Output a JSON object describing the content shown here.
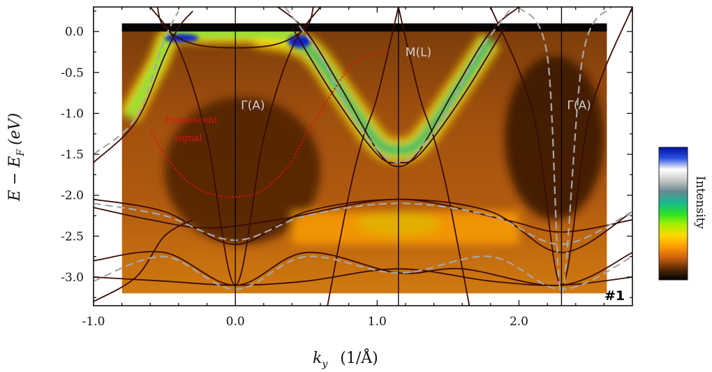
{
  "chart_data": {
    "type": "heatmap",
    "title": "",
    "panel_label": "#1",
    "xlabel": {
      "main": "k",
      "sub": "y",
      "units": "(1/Å)"
    },
    "ylabel": {
      "main": "E − E",
      "sub": "F",
      "units": "(eV)"
    },
    "xlim": [
      -1.0,
      2.8
    ],
    "ylim": [
      -3.35,
      0.3
    ],
    "data_xrange": [
      -0.8,
      2.62
    ],
    "data_yrange": [
      -3.2,
      0.1
    ],
    "xticks": [
      {
        "value": -1.0,
        "label": "-1.0"
      },
      {
        "value": 0.0,
        "label": "0.0"
      },
      {
        "value": 1.0,
        "label": "1.0"
      },
      {
        "value": 2.0,
        "label": "2.0"
      }
    ],
    "yticks": [
      {
        "value": 0.0,
        "label": "0.0"
      },
      {
        "value": -0.5,
        "label": "-0.5"
      },
      {
        "value": -1.0,
        "label": "-1.0"
      },
      {
        "value": -1.5,
        "label": "-1.5"
      },
      {
        "value": -2.0,
        "label": "-2.0"
      },
      {
        "value": -2.5,
        "label": "-2.5"
      },
      {
        "value": -3.0,
        "label": "-3.0"
      }
    ],
    "high_symmetry_points": [
      {
        "k": 0.0,
        "label": "Γ(A)"
      },
      {
        "k": 1.15,
        "label": "M(L)"
      },
      {
        "k": 2.3,
        "label": "Γ(A)"
      }
    ],
    "evanescent_annotation": {
      "line1": "Evanescent",
      "line2": "signal"
    },
    "evanescent_curve": {
      "k": [
        -0.6,
        -0.5,
        -0.4,
        -0.3,
        -0.2,
        -0.1,
        0.0,
        0.1,
        0.2,
        0.3,
        0.4,
        0.5,
        0.6,
        0.7,
        0.8,
        0.9,
        1.0,
        1.1
      ],
      "E": [
        -1.2,
        -1.5,
        -1.72,
        -1.88,
        -1.97,
        -2.01,
        -2.02,
        -2.0,
        -1.93,
        -1.78,
        -1.58,
        -1.25,
        -0.98,
        -0.7,
        -0.45,
        -0.32,
        -0.26,
        -0.23
      ]
    },
    "colorbar": {
      "label": "Intensity",
      "stops": [
        "#000000",
        "#5a2a05",
        "#cc6010",
        "#ff9a00",
        "#ffd800",
        "#a8f000",
        "#28e028",
        "#18b890",
        "#688890",
        "#c8c8c8",
        "#ffffff",
        "#2a50e0",
        "#0010a0"
      ]
    },
    "dft_bands_solid": [
      {
        "name": "band-1",
        "points": [
          [
            -1.0,
            -1.6
          ],
          [
            -0.7,
            -1.1
          ],
          [
            -0.5,
            -0.3
          ],
          [
            -0.4,
            0.05
          ],
          [
            -0.3,
            0.25
          ]
        ]
      },
      {
        "name": "band-2",
        "points": [
          [
            -0.55,
            0.3
          ],
          [
            -0.5,
            0.05
          ],
          [
            -0.3,
            -0.15
          ],
          [
            0.0,
            -0.2
          ],
          [
            0.3,
            -0.15
          ],
          [
            0.5,
            0.05
          ],
          [
            0.55,
            0.3
          ]
        ]
      },
      {
        "name": "band-3",
        "points": [
          [
            0.3,
            0.3
          ],
          [
            0.5,
            0.0
          ],
          [
            0.75,
            -0.7
          ],
          [
            1.0,
            -1.45
          ],
          [
            1.15,
            -1.65
          ],
          [
            1.3,
            -1.45
          ],
          [
            1.55,
            -0.7
          ],
          [
            1.8,
            0.0
          ],
          [
            2.0,
            0.3
          ]
        ]
      },
      {
        "name": "band-4",
        "points": [
          [
            0.4,
            0.05
          ],
          [
            0.7,
            -0.8
          ],
          [
            1.0,
            -1.5
          ],
          [
            1.15,
            -1.6
          ],
          [
            1.3,
            -1.5
          ],
          [
            1.6,
            -0.8
          ],
          [
            1.9,
            0.05
          ]
        ]
      },
      {
        "name": "band-5",
        "points": [
          [
            -0.6,
            0.3
          ],
          [
            -0.4,
            -0.2
          ],
          [
            -0.2,
            -1.3
          ],
          [
            0.0,
            -3.1
          ],
          [
            0.2,
            -1.3
          ],
          [
            0.4,
            -0.2
          ],
          [
            0.6,
            0.3
          ]
        ]
      },
      {
        "name": "band-6",
        "points": [
          [
            -1.0,
            -2.05
          ],
          [
            -0.5,
            -2.2
          ],
          [
            0.0,
            -2.6
          ],
          [
            0.5,
            -2.2
          ],
          [
            1.15,
            -2.05
          ],
          [
            1.8,
            -2.2
          ],
          [
            2.3,
            -2.7
          ],
          [
            2.8,
            -2.2
          ]
        ]
      },
      {
        "name": "band-7",
        "points": [
          [
            -1.0,
            -2.15
          ],
          [
            -0.6,
            -2.3
          ],
          [
            -0.2,
            -2.4
          ],
          [
            0.3,
            -2.3
          ],
          [
            1.15,
            -2.05
          ],
          [
            1.9,
            -2.3
          ],
          [
            2.3,
            -2.45
          ],
          [
            2.8,
            -2.3
          ]
        ]
      },
      {
        "name": "band-8",
        "points": [
          [
            -1.0,
            -2.8
          ],
          [
            -0.5,
            -2.7
          ],
          [
            0.0,
            -3.1
          ],
          [
            0.5,
            -2.7
          ],
          [
            1.15,
            -2.95
          ],
          [
            1.6,
            -2.9
          ],
          [
            2.3,
            -3.1
          ],
          [
            2.8,
            -2.7
          ]
        ]
      },
      {
        "name": "band-9",
        "points": [
          [
            -1.0,
            -3.0
          ],
          [
            -0.5,
            -3.05
          ],
          [
            0.0,
            -3.1
          ],
          [
            0.5,
            -3.05
          ],
          [
            1.15,
            -2.9
          ],
          [
            1.8,
            -3.05
          ],
          [
            2.3,
            -3.1
          ],
          [
            2.8,
            -3.0
          ]
        ]
      },
      {
        "name": "band-10",
        "points": [
          [
            0.65,
            -3.35
          ],
          [
            0.8,
            -2.0
          ],
          [
            0.9,
            -1.3
          ],
          [
            1.0,
            -0.8
          ],
          [
            1.15,
            0.3
          ]
        ]
      },
      {
        "name": "band-11",
        "points": [
          [
            1.15,
            0.3
          ],
          [
            1.3,
            -0.8
          ],
          [
            1.4,
            -1.3
          ],
          [
            1.5,
            -2.0
          ],
          [
            1.65,
            -3.35
          ]
        ]
      },
      {
        "name": "band-12",
        "points": [
          [
            1.8,
            0.3
          ],
          [
            2.1,
            -1.0
          ],
          [
            2.3,
            -3.1
          ],
          [
            2.5,
            -1.0
          ],
          [
            2.8,
            0.3
          ]
        ]
      },
      {
        "name": "band-13",
        "points": [
          [
            -1.0,
            -3.3
          ],
          [
            -0.7,
            -3.0
          ],
          [
            -0.5,
            -2.5
          ],
          [
            -0.3,
            -2.3
          ]
        ]
      }
    ],
    "dft_bands_dashed": [
      {
        "name": "dashed-1",
        "points": [
          [
            -1.0,
            -1.5
          ],
          [
            -0.7,
            -1.05
          ],
          [
            -0.5,
            -0.1
          ],
          [
            -0.4,
            0.25
          ]
        ]
      },
      {
        "name": "dashed-2",
        "points": [
          [
            0.35,
            0.3
          ],
          [
            0.6,
            -0.3
          ],
          [
            0.85,
            -1.1
          ],
          [
            1.15,
            -1.6
          ],
          [
            1.45,
            -1.1
          ],
          [
            1.7,
            -0.3
          ],
          [
            1.95,
            0.3
          ]
        ]
      },
      {
        "name": "dashed-3",
        "points": [
          [
            -1.0,
            -2.1
          ],
          [
            -0.5,
            -2.25
          ],
          [
            0.0,
            -2.55
          ],
          [
            0.5,
            -2.25
          ],
          [
            1.15,
            -2.1
          ],
          [
            1.8,
            -2.25
          ],
          [
            2.3,
            -2.6
          ],
          [
            2.8,
            -2.2
          ]
        ]
      },
      {
        "name": "dashed-4",
        "points": [
          [
            -1.0,
            -3.05
          ],
          [
            -0.5,
            -2.75
          ],
          [
            0.0,
            -3.15
          ],
          [
            0.5,
            -2.75
          ],
          [
            1.15,
            -2.95
          ],
          [
            1.8,
            -2.75
          ],
          [
            2.3,
            -3.15
          ],
          [
            2.8,
            -2.75
          ]
        ]
      },
      {
        "name": "dashed-5",
        "points": [
          [
            2.0,
            0.3
          ],
          [
            2.2,
            -0.3
          ],
          [
            2.3,
            -3.2
          ],
          [
            2.45,
            -0.3
          ],
          [
            2.65,
            0.3
          ]
        ]
      }
    ]
  }
}
